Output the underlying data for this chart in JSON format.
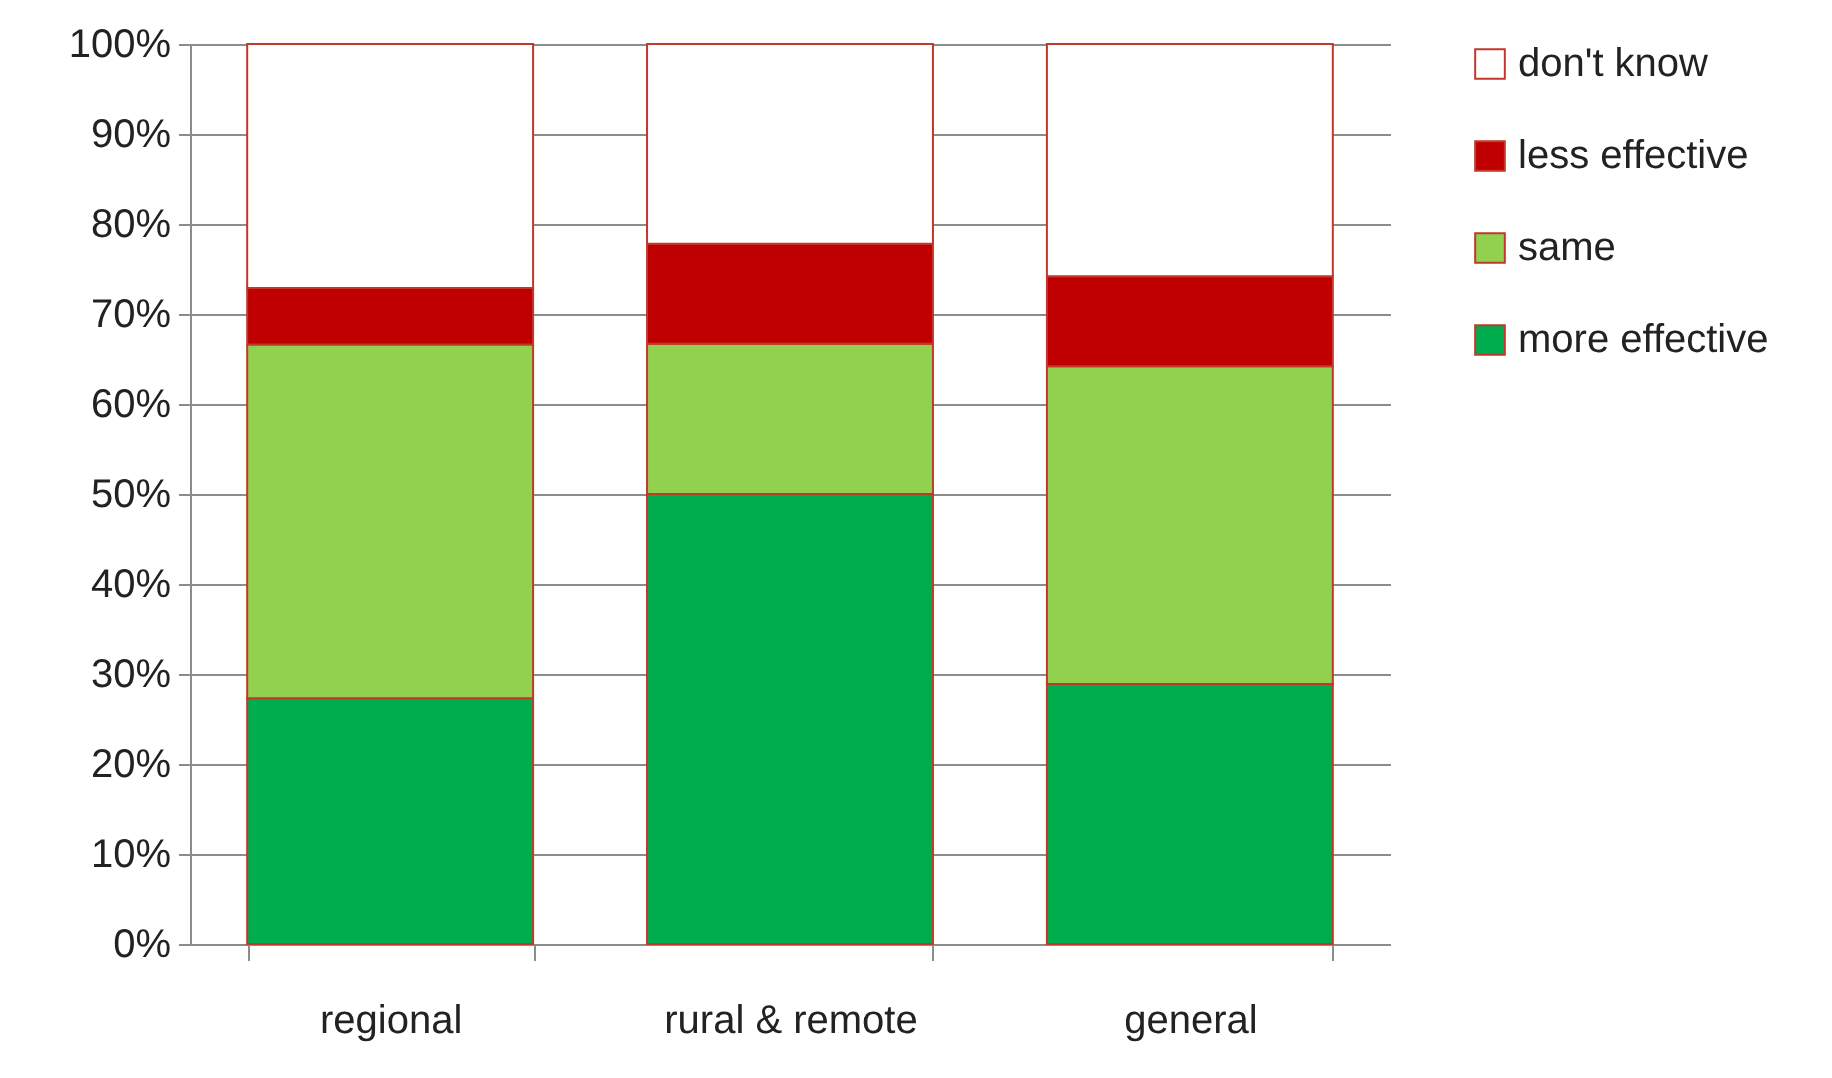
{
  "chart_data": {
    "type": "bar",
    "stacked": true,
    "categories": [
      "regional",
      "rural & remote",
      "general"
    ],
    "series": [
      {
        "name": "more effective",
        "color": "#00ad4e",
        "values": [
          27.3,
          50.0,
          28.9
        ]
      },
      {
        "name": "same",
        "color": "#92d050",
        "values": [
          39.3,
          16.7,
          35.3
        ]
      },
      {
        "name": "less effective",
        "color": "#c00000",
        "values": [
          6.3,
          11.1,
          10.0
        ]
      },
      {
        "name": "don't know",
        "color": "#ffffff",
        "values": [
          27.1,
          22.2,
          25.8
        ]
      }
    ],
    "ylim": [
      0,
      100
    ],
    "yticks": [
      {
        "value": 0,
        "label": "0%"
      },
      {
        "value": 10,
        "label": "10%"
      },
      {
        "value": 20,
        "label": "20%"
      },
      {
        "value": 30,
        "label": "30%"
      },
      {
        "value": 40,
        "label": "40%"
      },
      {
        "value": 50,
        "label": "50%"
      },
      {
        "value": 60,
        "label": "60%"
      },
      {
        "value": 70,
        "label": "70%"
      },
      {
        "value": 80,
        "label": "80%"
      },
      {
        "value": 90,
        "label": "90%"
      },
      {
        "value": 100,
        "label": "100%"
      }
    ],
    "grid": "y",
    "legend": "right"
  }
}
